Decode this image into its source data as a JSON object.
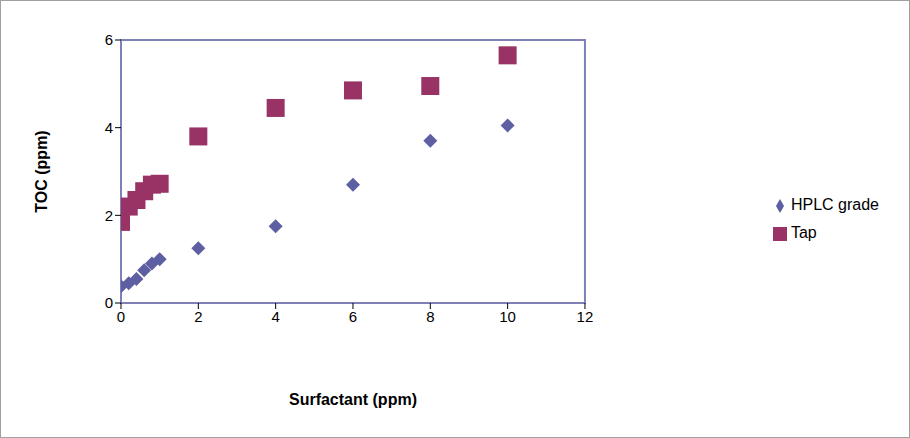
{
  "chart_data": {
    "type": "scatter",
    "x_label": "Surfactant (ppm)",
    "y_label": "TOC (ppm)",
    "xlim": [
      0,
      12
    ],
    "xticks": [
      0,
      2,
      4,
      6,
      8,
      10,
      12
    ],
    "ylim": [
      0,
      6
    ],
    "yticks": [
      0,
      2,
      4,
      6
    ],
    "grid": false,
    "legend": "right",
    "series": [
      {
        "name": "HPLC grade",
        "color": "#5e5ea3",
        "marker": "diamond",
        "x": [
          0,
          0.2,
          0.4,
          0.6,
          0.8,
          1,
          2,
          4,
          6,
          8,
          10
        ],
        "values": [
          0.38,
          0.45,
          0.55,
          0.75,
          0.9,
          1.0,
          1.25,
          1.75,
          2.7,
          3.7,
          4.05
        ]
      },
      {
        "name": "Tap",
        "color": "#993366",
        "marker": "square",
        "x": [
          0,
          0.2,
          0.4,
          0.6,
          0.8,
          1,
          2,
          4,
          6,
          8,
          10
        ],
        "values": [
          1.85,
          2.2,
          2.35,
          2.55,
          2.7,
          2.72,
          3.8,
          4.45,
          4.85,
          4.95,
          5.65
        ]
      }
    ]
  }
}
